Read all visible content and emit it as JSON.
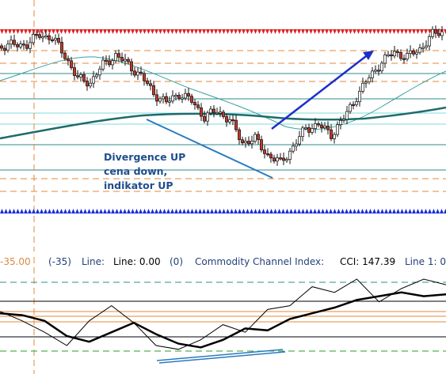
{
  "annotation": {
    "line1": "Divergence UP",
    "line2": "cena down,",
    "line3": "indikator UP"
  },
  "indicator_bar": {
    "left_value": "-35.00",
    "left_paren": "(-35)",
    "line_label": "Line:",
    "line_value": "Line: 0.00",
    "line_paren": "(0)",
    "indicator_name": "Commodity Channel Index:",
    "cci_value": "CCI: 147.39",
    "line1_label": "Line 1: 0"
  },
  "colors": {
    "bull_candle": "#ffffff",
    "bear_candle": "#c0392b",
    "resistance_arrows": "#e02020",
    "support_arrows": "#1a2fd6",
    "orange_levels": "#e08a3c",
    "teal_levels": "#2e8b8b",
    "blue_arrow": "#1d2fc9",
    "divergence_line": "#2a7bbf"
  },
  "chart_data": [
    {
      "type": "candlestick",
      "title": "",
      "x": [
        0,
        1,
        2,
        3,
        4,
        5,
        6,
        7,
        8,
        9,
        10,
        11,
        12,
        13,
        14,
        15,
        16,
        17,
        18,
        19,
        20,
        21,
        22,
        23,
        24,
        25,
        26,
        27,
        28,
        29,
        30,
        31,
        32,
        33,
        34,
        35,
        36,
        37,
        38,
        39,
        40,
        41,
        42,
        43,
        44,
        45,
        46,
        47,
        48,
        49,
        50,
        51,
        52,
        53,
        54,
        55,
        56,
        57,
        58,
        59,
        60,
        61,
        62,
        63,
        64,
        65,
        66,
        67,
        68,
        69,
        70,
        71,
        72,
        73,
        74,
        75,
        76,
        77,
        78,
        79,
        80,
        81,
        82,
        83,
        84,
        85,
        86,
        87,
        88,
        89,
        90,
        91,
        92,
        93,
        94,
        95,
        96,
        97,
        98,
        99,
        100,
        101,
        102,
        103,
        104,
        105,
        106,
        107,
        108,
        109,
        110,
        111,
        112,
        113,
        114,
        115,
        116,
        117,
        118,
        119,
        120,
        121,
        122,
        123,
        124,
        125,
        126,
        127,
        128,
        129,
        130,
        131,
        132,
        133,
        134,
        135,
        136,
        137,
        138,
        139
      ],
      "close_path": [
        [
          0,
          58
        ],
        [
          8,
          56
        ],
        [
          12,
          44
        ],
        [
          16,
          48
        ],
        [
          20,
          70
        ],
        [
          24,
          100
        ],
        [
          28,
          104
        ],
        [
          32,
          82
        ],
        [
          36,
          70
        ],
        [
          40,
          82
        ],
        [
          44,
          96
        ],
        [
          48,
          118
        ],
        [
          52,
          130
        ],
        [
          56,
          118
        ],
        [
          60,
          128
        ],
        [
          64,
          148
        ],
        [
          68,
          140
        ],
        [
          72,
          152
        ],
        [
          76,
          180
        ],
        [
          80,
          176
        ],
        [
          84,
          196
        ],
        [
          88,
          206
        ],
        [
          92,
          186
        ],
        [
          96,
          162
        ],
        [
          100,
          158
        ],
        [
          104,
          170
        ],
        [
          108,
          150
        ],
        [
          112,
          122
        ],
        [
          116,
          98
        ],
        [
          120,
          78
        ],
        [
          124,
          66
        ],
        [
          128,
          72
        ],
        [
          132,
          62
        ],
        [
          136,
          44
        ],
        [
          139,
          40
        ]
      ],
      "note": "price path read as top-pane vertical position, lower value = higher price"
    },
    {
      "type": "line",
      "title": "",
      "series": [
        {
          "values": [
            0.2,
            0.1,
            -0.2,
            -1.0,
            -1.3,
            -0.8,
            -0.3,
            -0.9,
            -1.4,
            -1.6,
            -1.2,
            -0.6,
            -0.7,
            -0.1,
            0.2,
            0.5,
            0.9,
            1.1,
            1.3,
            1.1,
            1.2
          ]
        },
        {
          "values": [
            0.3,
            -0.2,
            -0.8,
            -1.5,
            -0.2,
            0.6,
            -0.3,
            -1.5,
            -1.7,
            -1.2,
            -0.4,
            -0.8,
            0.4,
            0.6,
            1.6,
            1.3,
            2.0,
            0.8,
            1.5,
            2.0,
            1.7
          ]
        }
      ],
      "note": "Commodity Channel Index (two lines), rising lows during price lows"
    }
  ]
}
